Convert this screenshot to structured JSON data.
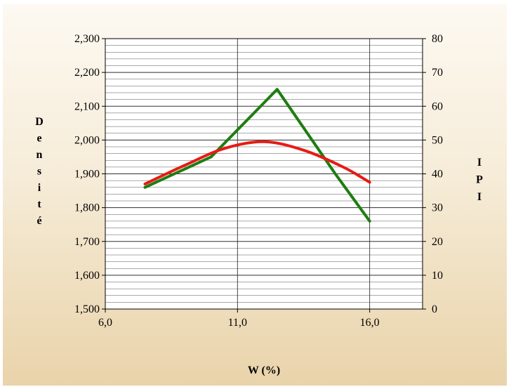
{
  "chart_data": {
    "type": "line",
    "xlabel": "W (%)",
    "ylabel_left_letters": [
      "D",
      "e",
      "n",
      "s",
      "i",
      "t",
      "é"
    ],
    "ylabel_right_letters": [
      "I",
      "P",
      "I"
    ],
    "x_axis": {
      "range": [
        6.0,
        18.0
      ],
      "ticks": [
        6.0,
        11.0,
        16.0
      ],
      "tick_labels": [
        "6,0",
        "11,0",
        "16,0"
      ]
    },
    "y_left": {
      "range": [
        1.5,
        2.3
      ],
      "ticks": [
        1.5,
        1.6,
        1.7,
        1.8,
        1.9,
        2.0,
        2.1,
        2.2,
        2.3
      ],
      "tick_labels": [
        "1,500",
        "1,600",
        "1,700",
        "1,800",
        "1,900",
        "2,000",
        "2,100",
        "2,200",
        "2,300"
      ],
      "minor_gridline_step": 0.02
    },
    "y_right": {
      "range": [
        0,
        80
      ],
      "ticks": [
        0,
        10,
        20,
        30,
        40,
        50,
        60,
        70,
        80
      ],
      "tick_labels": [
        "0",
        "10",
        "20",
        "30",
        "40",
        "50",
        "60",
        "70",
        "80"
      ]
    },
    "grid": true,
    "series": [
      {
        "axis": "right",
        "color": "#1e7d10",
        "smooth": false,
        "x": [
          7.5,
          10.0,
          12.5,
          14.7,
          16.0
        ],
        "y": [
          36,
          45,
          65,
          40,
          26
        ]
      },
      {
        "axis": "left",
        "color": "#e61c14",
        "smooth": true,
        "x": [
          7.5,
          9.0,
          10.5,
          12.0,
          13.5,
          15.0,
          16.0
        ],
        "y": [
          1.87,
          1.925,
          1.975,
          1.995,
          1.97,
          1.92,
          1.875
        ]
      }
    ]
  }
}
